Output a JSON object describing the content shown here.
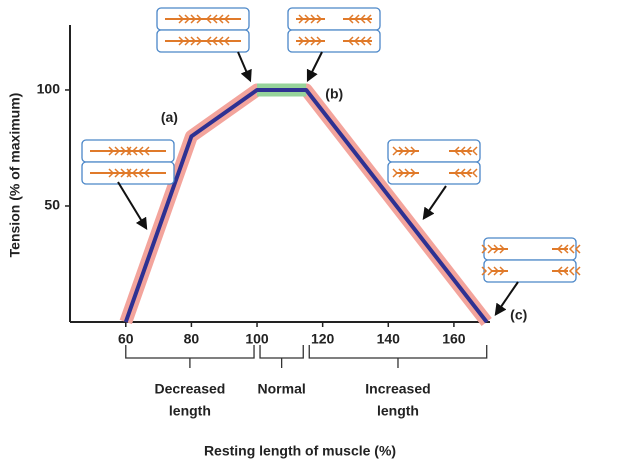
{
  "chart_data": {
    "type": "line",
    "x_label": "Resting length of muscle (%)",
    "y_label": "Tension (% of maximum)",
    "x": [
      60,
      80,
      100,
      115,
      170
    ],
    "series": [
      {
        "values": [
          0,
          80,
          100,
          100,
          0
        ],
        "color": "#2e3192"
      }
    ],
    "halo_color": "#f3a49c",
    "plateau_color": "#96d39a",
    "xlim": [
      43,
      171
    ],
    "ylim": [
      0,
      128
    ],
    "xticks": [
      60,
      80,
      100,
      120,
      140,
      160
    ],
    "yticks": [
      50,
      100
    ],
    "annotations": [
      {
        "text": "(a)",
        "x": 80,
        "y": 80
      },
      {
        "text": "(b)",
        "x": 115,
        "y": 100
      },
      {
        "text": "(c)",
        "x": 170,
        "y": 0
      }
    ],
    "regions": [
      {
        "label": [
          "Decreased",
          "length"
        ],
        "from": 60,
        "to": 100
      },
      {
        "label": [
          "Normal"
        ],
        "from": 100,
        "to": 115
      },
      {
        "label": [
          "Increased",
          "length"
        ],
        "from": 115,
        "to": 170
      }
    ]
  }
}
